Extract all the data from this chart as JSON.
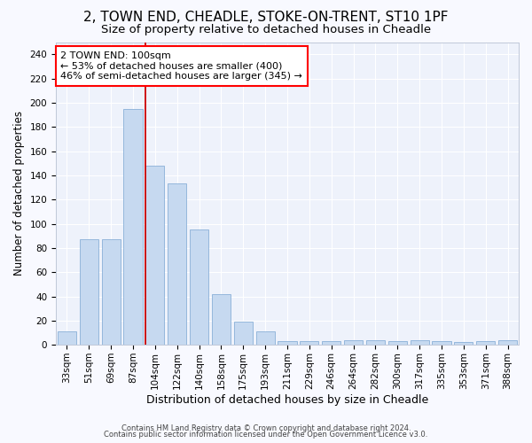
{
  "title1": "2, TOWN END, CHEADLE, STOKE-ON-TRENT, ST10 1PF",
  "title2": "Size of property relative to detached houses in Cheadle",
  "xlabel": "Distribution of detached houses by size in Cheadle",
  "ylabel": "Number of detached properties",
  "categories": [
    "33sqm",
    "51sqm",
    "69sqm",
    "87sqm",
    "104sqm",
    "122sqm",
    "140sqm",
    "158sqm",
    "175sqm",
    "193sqm",
    "211sqm",
    "229sqm",
    "246sqm",
    "264sqm",
    "282sqm",
    "300sqm",
    "317sqm",
    "335sqm",
    "353sqm",
    "371sqm",
    "388sqm"
  ],
  "values": [
    11,
    87,
    87,
    195,
    148,
    133,
    95,
    42,
    19,
    11,
    3,
    3,
    3,
    4,
    4,
    3,
    4,
    3,
    2,
    3,
    4
  ],
  "bar_color": "#c6d9f0",
  "bar_edge_color": "#8ab0d8",
  "vline_index": 4,
  "vline_color": "#cc0000",
  "annotation_line1": "2 TOWN END: 100sqm",
  "annotation_line2": "← 53% of detached houses are smaller (400)",
  "annotation_line3": "46% of semi-detached houses are larger (345) →",
  "ylim": [
    0,
    250
  ],
  "yticks": [
    0,
    20,
    40,
    60,
    80,
    100,
    120,
    140,
    160,
    180,
    200,
    220,
    240
  ],
  "footer1": "Contains HM Land Registry data © Crown copyright and database right 2024.",
  "footer2": "Contains public sector information licensed under the Open Government Licence v3.0.",
  "bg_color": "#eef2fb",
  "grid_color": "#ffffff",
  "fig_bg_color": "#f8f9ff",
  "title1_fontsize": 11,
  "title2_fontsize": 9.5,
  "xlabel_fontsize": 9,
  "ylabel_fontsize": 8.5,
  "annot_fontsize": 8,
  "tick_fontsize": 7.5
}
